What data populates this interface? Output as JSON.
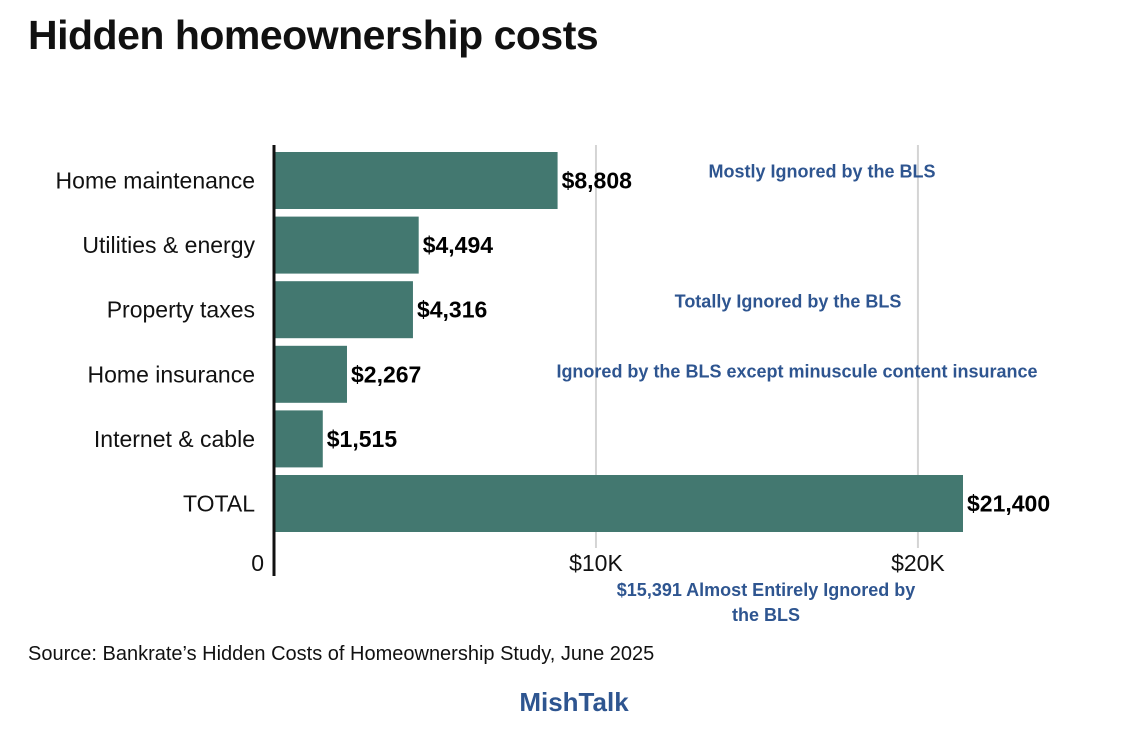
{
  "title": "Hidden homeownership costs",
  "source": "Source: Bankrate’s Hidden Costs of Homeownership Study, June 2025",
  "brand": "MishTalk",
  "colors": {
    "bar": "#437870",
    "note": "#2e5590",
    "grid": "#d4d4d4",
    "axis": "#111111"
  },
  "chart_data": {
    "type": "bar",
    "orientation": "horizontal",
    "categories": [
      "Home maintenance",
      "Utilities & energy",
      "Property taxes",
      "Home insurance",
      "Internet & cable",
      "TOTAL"
    ],
    "values": [
      8808,
      4494,
      4316,
      2267,
      1515,
      21400
    ],
    "value_labels": [
      "$8,808",
      "$4,494",
      "$4,316",
      "$2,267",
      "$1,515",
      "$21,400"
    ],
    "xlim": [
      0,
      21400
    ],
    "x_ticks": [
      {
        "value": 0,
        "label": "0"
      },
      {
        "value": 10000,
        "label": "$10K"
      },
      {
        "value": 20000,
        "label": "$20K"
      }
    ],
    "grid": true,
    "annotations": [
      {
        "text": "Mostly Ignored by the BLS",
        "row": 0
      },
      {
        "text": "Totally Ignored by the BLS",
        "row": 2
      },
      {
        "text": "Ignored by the BLS except minuscule content insurance",
        "row": 3
      },
      {
        "text": "$15,391 Almost Entirely Ignored by",
        "row": "below-axis"
      },
      {
        "text": "the BLS",
        "row": "below-axis"
      }
    ]
  }
}
